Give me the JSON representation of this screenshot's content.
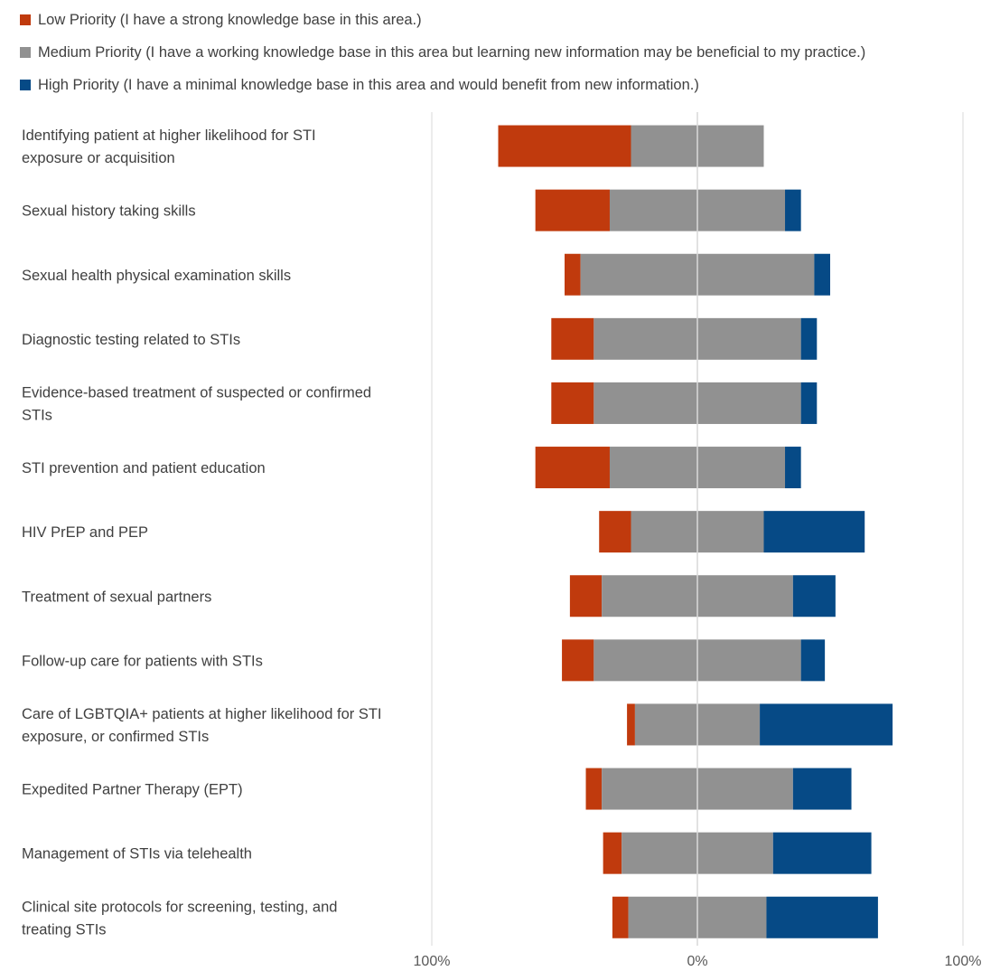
{
  "chart_data": {
    "type": "bar",
    "subtype": "diverging-stacked",
    "title": "",
    "xlabel": "",
    "ylabel": "",
    "xlim": [
      -100,
      100
    ],
    "x_ticks": [
      {
        "value": -100,
        "label": "100%"
      },
      {
        "value": 0,
        "label": "0%"
      },
      {
        "value": 100,
        "label": "100%"
      }
    ],
    "legend_position": "top-left",
    "grid": true,
    "categories": [
      [
        "Identifying patient at higher likelihood for STI",
        "exposure or acquisition"
      ],
      [
        "Sexual history taking skills"
      ],
      [
        "Sexual health physical examination skills"
      ],
      [
        "Diagnostic testing related to STIs"
      ],
      [
        "Evidence-based treatment of suspected or confirmed",
        "STIs"
      ],
      [
        "STI prevention and patient education"
      ],
      [
        "HIV PrEP and PEP"
      ],
      [
        "Treatment of sexual partners"
      ],
      [
        "Follow-up care for patients with STIs"
      ],
      [
        "Care of LGBTQIA+ patients at higher likelihood for STI",
        "exposure, or confirmed STIs"
      ],
      [
        "Expedited Partner Therapy (EPT)"
      ],
      [
        "Management of STIs via telehealth"
      ],
      [
        "Clinical site protocols for screening, testing, and",
        "treating STIs"
      ]
    ],
    "series": [
      {
        "name": "Low Priority (I have a strong knowledge base in this area.)",
        "color": "#C03A0D",
        "values": [
          50,
          28,
          6,
          16,
          16,
          28,
          12,
          12,
          12,
          3,
          6,
          7,
          6
        ]
      },
      {
        "name": "Medium Priority (I have a working knowledge base in this area but learning new information may be beneficial to my practice.)",
        "color": "#919191",
        "values": [
          50,
          66,
          88,
          78,
          78,
          66,
          50,
          72,
          78,
          47,
          72,
          57,
          52
        ]
      },
      {
        "name": "High Priority (I have a minimal knowledge base in this area and would benefit from new information.)",
        "color": "#064A86",
        "values": [
          0,
          6,
          6,
          6,
          6,
          6,
          38,
          16,
          9,
          50,
          22,
          37,
          42
        ]
      }
    ]
  }
}
